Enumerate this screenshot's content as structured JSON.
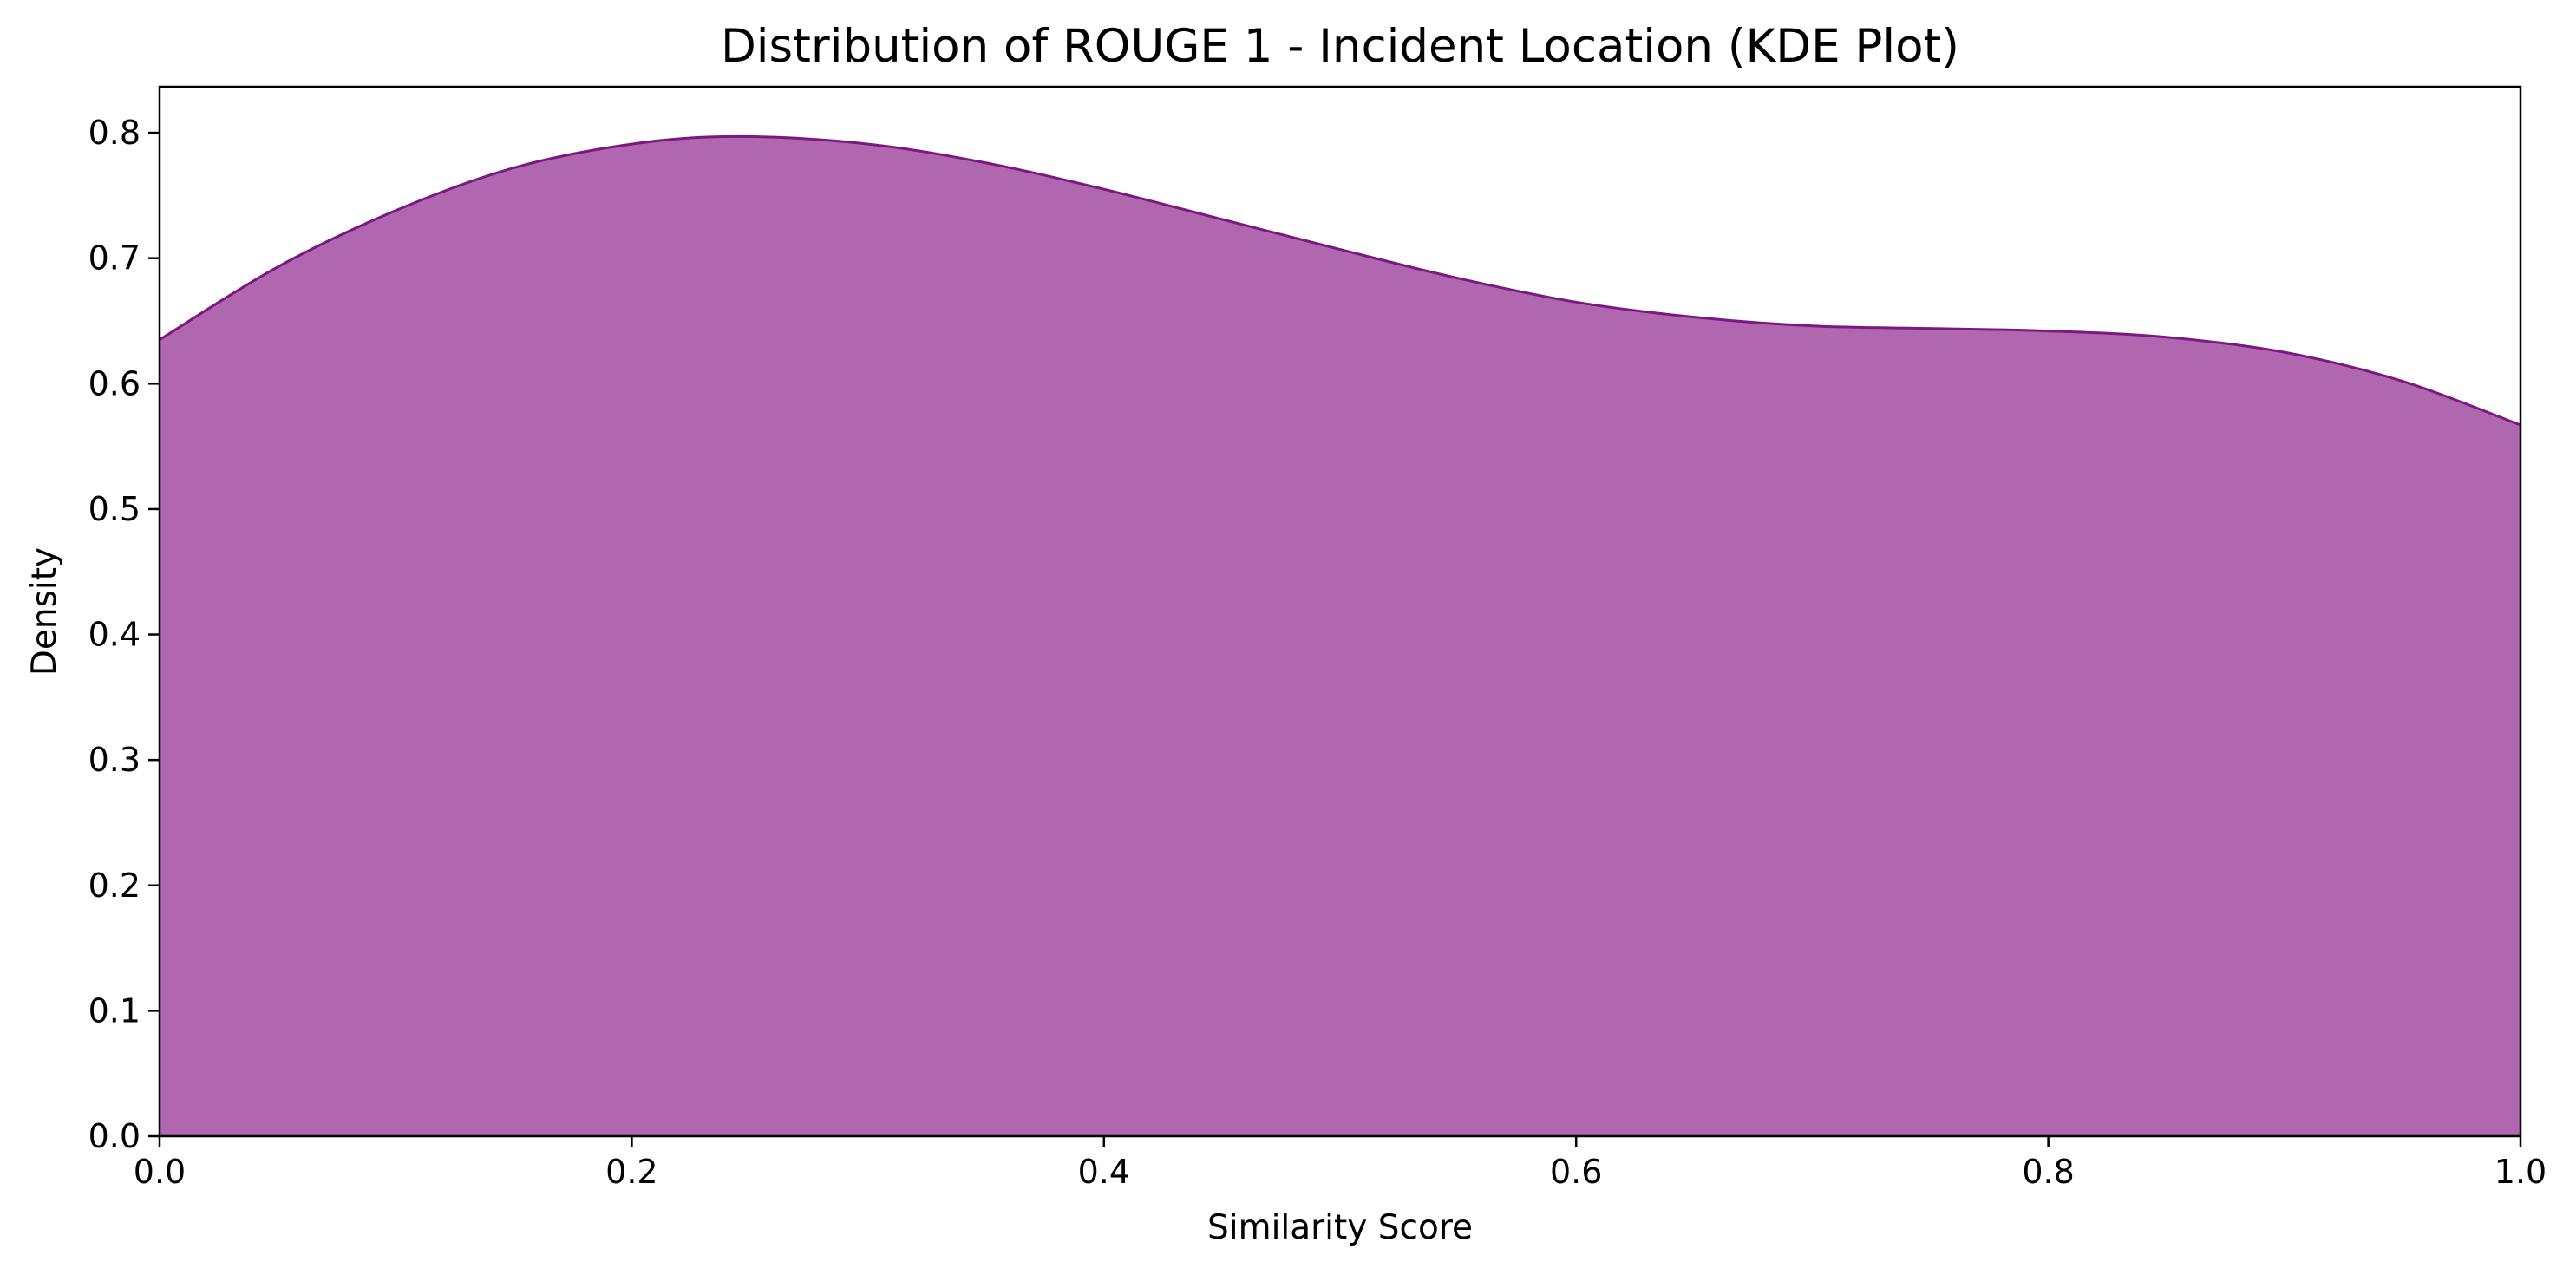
{
  "chart_data": {
    "type": "area",
    "title": "Distribution of ROUGE 1 - Incident Location (KDE Plot)",
    "xlabel": "Similarity Score",
    "ylabel": "Density",
    "xlim": [
      0.0,
      1.0
    ],
    "ylim": [
      0.0,
      0.8367
    ],
    "x_ticks": [
      "0.0",
      "0.2",
      "0.4",
      "0.6",
      "0.8",
      "1.0"
    ],
    "y_ticks": [
      "0.0",
      "0.1",
      "0.2",
      "0.3",
      "0.4",
      "0.5",
      "0.6",
      "0.7",
      "0.8"
    ],
    "grid": false,
    "legend": "none",
    "colors": {
      "fill": "#b166b0",
      "line": "#7a1a80"
    },
    "series": [
      {
        "x": [
          0.0,
          0.05,
          0.1,
          0.15,
          0.2,
          0.245,
          0.3,
          0.35,
          0.4,
          0.45,
          0.5,
          0.55,
          0.6,
          0.65,
          0.7,
          0.75,
          0.8,
          0.85,
          0.9,
          0.95,
          1.0
        ],
        "y": [
          0.635,
          0.693,
          0.738,
          0.772,
          0.791,
          0.797,
          0.791,
          0.776,
          0.755,
          0.731,
          0.707,
          0.684,
          0.665,
          0.653,
          0.646,
          0.644,
          0.642,
          0.637,
          0.625,
          0.602,
          0.567
        ]
      }
    ]
  }
}
